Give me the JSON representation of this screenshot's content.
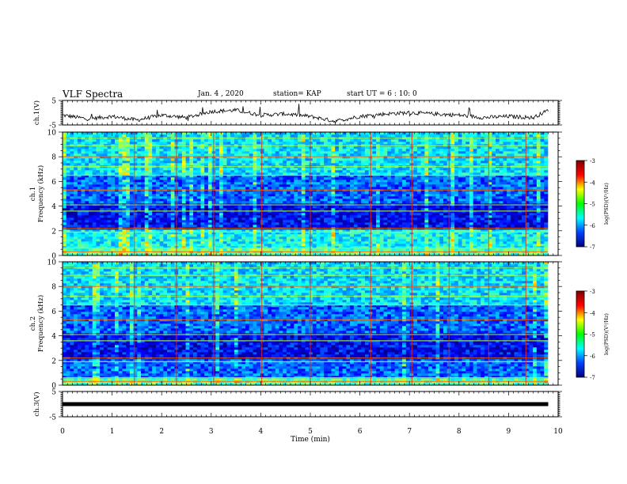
{
  "header": {
    "title": "VLF Spectra",
    "date": "Jan. 4 , 2020",
    "station": "station= KAP",
    "start": "start UT = 6 : 10: 0"
  },
  "colorbar": {
    "label": "log(PSD)(V²/Hz)",
    "ticks": [
      "-3",
      "-4",
      "-5",
      "-6",
      "-7"
    ],
    "colors": [
      "#7f0000",
      "#ff0000",
      "#ffff00",
      "#00ff00",
      "#00ffff",
      "#0040ff",
      "#00007f"
    ]
  },
  "chart_data": [
    {
      "type": "line",
      "name": "ch1-waveform",
      "ylabel": "ch.1(V)",
      "ylim": [
        -5,
        5
      ],
      "yticks": [
        "5",
        "-5"
      ],
      "xlim": [
        0,
        10
      ],
      "x": [
        0,
        0.5,
        1,
        1.5,
        2,
        2.5,
        3,
        3.5,
        4,
        4.5,
        5,
        5.5,
        6,
        6.5,
        7,
        7.5,
        8,
        8.5,
        9,
        9.5,
        9.8
      ],
      "y": [
        -1,
        -2.5,
        -1.5,
        -3,
        -1,
        -2,
        0.5,
        1,
        -1,
        -0.5,
        -1.5,
        -3.5,
        -1.5,
        -0.5,
        0,
        -0.5,
        -1,
        -2,
        -1.5,
        -2,
        1
      ]
    },
    {
      "type": "heatmap",
      "name": "ch1-spectrogram",
      "ylabel": "ch.1\nFrequency (kHz)",
      "ylim": [
        0,
        10
      ],
      "yticks": [
        "0",
        "2",
        "4",
        "6",
        "8",
        "10"
      ],
      "xlim": [
        0,
        10
      ],
      "zlim": [
        -7,
        -3
      ]
    },
    {
      "type": "heatmap",
      "name": "ch2-spectrogram",
      "ylabel": "ch.2\nFrequency (kHz)",
      "ylim": [
        0,
        10
      ],
      "yticks": [
        "0",
        "2",
        "4",
        "6",
        "8",
        "10"
      ],
      "xlim": [
        0,
        10
      ],
      "zlim": [
        -7,
        -3
      ]
    },
    {
      "type": "line",
      "name": "ch3-waveform",
      "ylabel": "ch.3(V)",
      "ylim": [
        -5,
        5
      ],
      "yticks": [
        "5",
        "-5"
      ],
      "xlim": [
        0,
        10
      ],
      "x": [
        0,
        9.8
      ],
      "y": [
        0,
        0
      ]
    }
  ],
  "xaxis": {
    "label": "Time (min)",
    "ticks": [
      "0",
      "1",
      "2",
      "3",
      "4",
      "5",
      "6",
      "7",
      "8",
      "9",
      "10"
    ]
  }
}
